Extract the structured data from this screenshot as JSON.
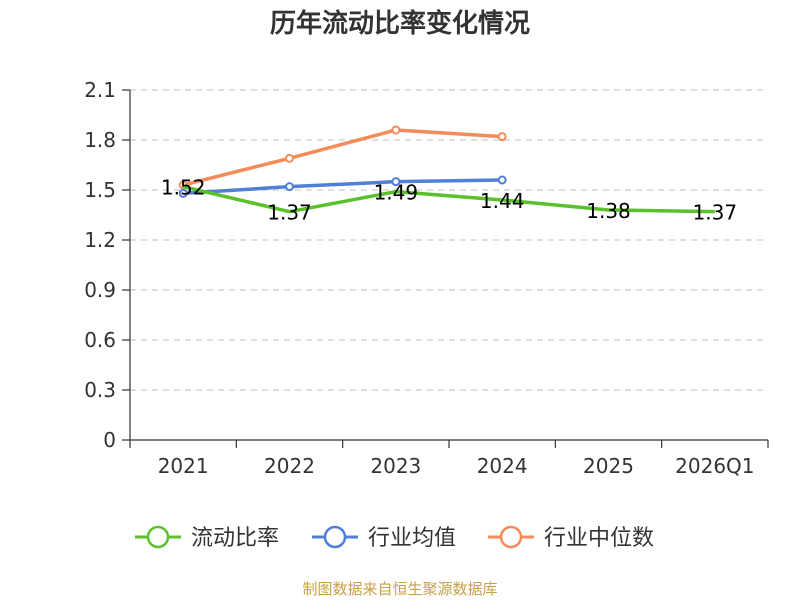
{
  "chart_data": {
    "type": "line",
    "title": "历年流动比率变化情况",
    "categories": [
      "2021",
      "2022",
      "2023",
      "2024",
      "2025",
      "2026Q1"
    ],
    "ylim": [
      0,
      2.1
    ],
    "yticks": [
      "0",
      "0.3",
      "0.6",
      "0.9",
      "1.2",
      "1.5",
      "1.8",
      "2.1"
    ],
    "grid": true,
    "legend_position": "bottom",
    "series": [
      {
        "name": "流动比率",
        "color": "#5bc12b",
        "values": [
          1.52,
          1.37,
          1.49,
          1.44,
          1.38,
          1.37
        ],
        "labels": [
          "1.52",
          "1.37",
          "1.49",
          "1.44",
          "1.38",
          "1.37"
        ]
      },
      {
        "name": "行业均值",
        "color": "#4f7fd8",
        "values": [
          1.48,
          1.52,
          1.55,
          1.56,
          null,
          null
        ]
      },
      {
        "name": "行业中位数",
        "color": "#f48c5a",
        "values": [
          1.53,
          1.69,
          1.86,
          1.82,
          null,
          null
        ]
      }
    ],
    "source": "制图数据来自恒生聚源数据库"
  }
}
